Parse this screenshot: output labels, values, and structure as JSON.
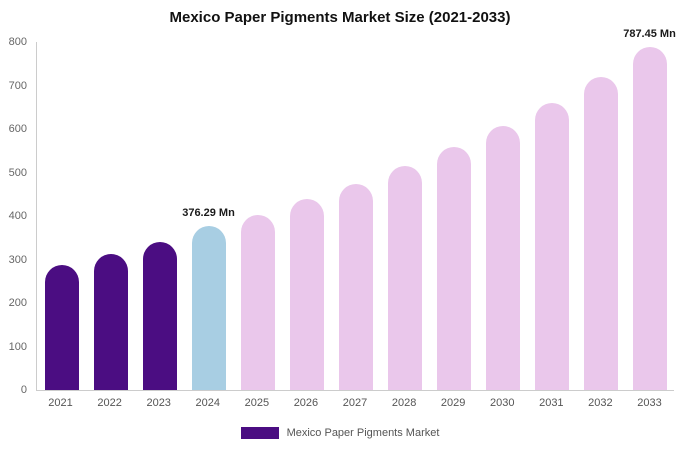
{
  "chart_data": {
    "type": "bar",
    "title": "Mexico Paper Pigments Market Size (2021-2033)",
    "categories": [
      "2021",
      "2022",
      "2023",
      "2024",
      "2025",
      "2026",
      "2027",
      "2028",
      "2029",
      "2030",
      "2031",
      "2032",
      "2033"
    ],
    "values": [
      288,
      312,
      340,
      376.29,
      402,
      438,
      473,
      514,
      558,
      607,
      660,
      720,
      787.45
    ],
    "bar_colors": [
      "#4B0D82",
      "#4B0D82",
      "#4B0D82",
      "#A8CEE3",
      "#EAC7EB",
      "#EAC7EB",
      "#EAC7EB",
      "#EAC7EB",
      "#EAC7EB",
      "#EAC7EB",
      "#EAC7EB",
      "#EAC7EB",
      "#EAC7EB"
    ],
    "annotations": [
      {
        "index": 3,
        "text": "376.29 Mn"
      },
      {
        "index": 12,
        "text": "787.45 Mn"
      }
    ],
    "xlabel": "",
    "ylabel": "",
    "ylim": [
      0,
      800
    ],
    "yticks": [
      0,
      100,
      200,
      300,
      400,
      500,
      600,
      700,
      800
    ],
    "grid": false,
    "legend_position": "bottom"
  },
  "legend": {
    "label": "Mexico Paper Pigments Market",
    "swatch_color": "#4B0D82"
  },
  "colors": {
    "background": "#ffffff",
    "axis": "#cccccc",
    "tick_label": "#666666",
    "annotation": "#1a1a1a",
    "historical_bar": "#4B0D82",
    "current_bar": "#A8CEE3",
    "forecast_bar": "#EAC7EB"
  }
}
